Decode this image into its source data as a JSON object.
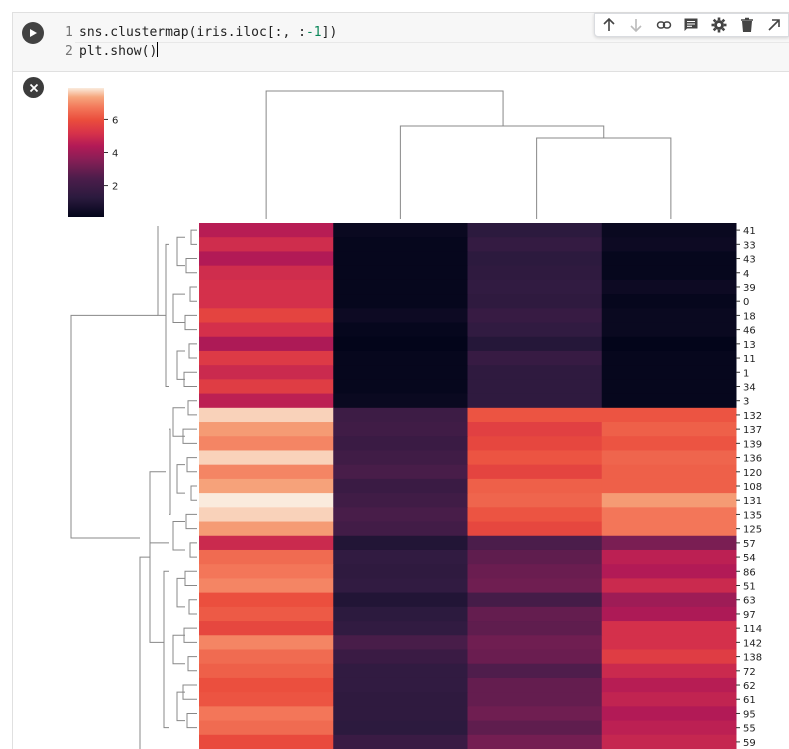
{
  "toolbar": {
    "icons": [
      "arrow-up-icon",
      "arrow-down-icon",
      "link-icon",
      "comment-icon",
      "gear-icon",
      "trash-icon",
      "open-in-new-icon"
    ]
  },
  "editor": {
    "lines": [
      {
        "num": "1",
        "pre": "sns.clustermap(iris.iloc[:, :",
        "num_lit": "-1",
        "post": "])"
      },
      {
        "num": "2",
        "pre": "plt.show()",
        "num_lit": "",
        "post": ""
      }
    ]
  },
  "chart_data": {
    "type": "heatmap",
    "colormap": "rocket",
    "colorbar": {
      "ticks": [
        2,
        4,
        6
      ],
      "range": [
        0.1,
        7.9
      ]
    },
    "row_labels": [
      "41",
      "33",
      "43",
      "4",
      "39",
      "0",
      "18",
      "46",
      "13",
      "11",
      "1",
      "34",
      "3",
      "132",
      "137",
      "139",
      "136",
      "120",
      "108",
      "131",
      "135",
      "125",
      "57",
      "54",
      "86",
      "51",
      "63",
      "97",
      "114",
      "142",
      "138",
      "72",
      "62",
      "61",
      "95",
      "55",
      "59"
    ],
    "columns": 4,
    "column_order_values": [
      [
        4.5,
        0.3,
        1.3,
        0.3
      ],
      [
        5.0,
        0.2,
        1.6,
        0.4
      ],
      [
        4.4,
        0.2,
        1.3,
        0.2
      ],
      [
        5.0,
        0.2,
        1.4,
        0.2
      ],
      [
        5.1,
        0.2,
        1.5,
        0.4
      ],
      [
        5.1,
        0.2,
        1.4,
        0.2
      ],
      [
        5.7,
        0.4,
        1.7,
        0.3
      ],
      [
        5.1,
        0.2,
        1.5,
        0.3
      ],
      [
        4.3,
        0.1,
        1.1,
        0.1
      ],
      [
        5.4,
        0.2,
        1.7,
        0.2
      ],
      [
        4.9,
        0.2,
        1.4,
        0.2
      ],
      [
        5.5,
        0.2,
        1.4,
        0.2
      ],
      [
        4.6,
        0.3,
        1.4,
        0.2
      ],
      [
        7.7,
        1.9,
        6.1,
        6.1
      ],
      [
        7.2,
        2.0,
        5.6,
        6.3
      ],
      [
        6.9,
        1.8,
        5.8,
        6.1
      ],
      [
        7.7,
        2.0,
        6.1,
        6.4
      ],
      [
        6.9,
        2.3,
        5.7,
        6.3
      ],
      [
        7.3,
        1.8,
        6.3,
        6.3
      ],
      [
        7.9,
        2.0,
        6.4,
        7.2
      ],
      [
        7.7,
        2.3,
        6.1,
        6.7
      ],
      [
        7.2,
        2.1,
        5.8,
        6.7
      ],
      [
        4.9,
        1.0,
        2.4,
        3.3
      ],
      [
        6.5,
        1.5,
        2.8,
        4.6
      ],
      [
        6.7,
        1.4,
        3.0,
        4.4
      ],
      [
        6.9,
        1.5,
        3.1,
        4.9
      ],
      [
        6.0,
        1.0,
        2.2,
        4.0
      ],
      [
        6.2,
        1.3,
        2.9,
        4.3
      ],
      [
        5.8,
        1.5,
        2.8,
        5.1
      ],
      [
        6.9,
        2.3,
        3.1,
        5.1
      ],
      [
        6.5,
        1.8,
        3.0,
        5.5
      ],
      [
        6.3,
        1.5,
        2.5,
        4.9
      ],
      [
        6.0,
        1.5,
        2.9,
        4.5
      ],
      [
        6.1,
        1.4,
        2.9,
        4.7
      ],
      [
        6.7,
        1.4,
        3.1,
        4.4
      ],
      [
        6.5,
        1.3,
        2.8,
        4.6
      ],
      [
        5.9,
        1.8,
        3.2,
        4.8
      ]
    ]
  }
}
